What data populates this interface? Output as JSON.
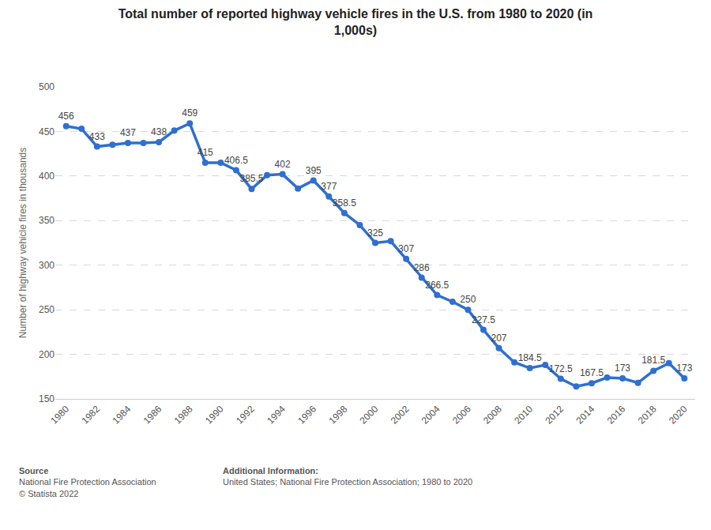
{
  "chart_data": {
    "type": "line",
    "title": "Total number of reported highway vehicle fires in the U.S. from 1980 to 2020 (in\n1,000s)",
    "y_label": "Number of highway vehicle fires in thousands",
    "x": [
      1980,
      1981,
      1982,
      1983,
      1984,
      1985,
      1986,
      1987,
      1988,
      1989,
      1990,
      1991,
      1992,
      1993,
      1994,
      1995,
      1996,
      1997,
      1998,
      1999,
      2000,
      2001,
      2002,
      2003,
      2004,
      2005,
      2006,
      2007,
      2008,
      2009,
      2010,
      2011,
      2012,
      2013,
      2014,
      2015,
      2016,
      2017,
      2018,
      2019,
      2020
    ],
    "values": [
      456,
      453,
      433,
      435,
      437,
      437,
      438,
      451,
      459,
      415,
      415,
      406.5,
      385.5,
      401,
      402,
      386,
      395,
      377,
      358.5,
      345,
      325,
      327,
      307,
      286,
      266.5,
      259,
      250,
      227.5,
      207,
      191,
      184.5,
      188,
      172.5,
      164,
      167.5,
      174,
      173,
      168,
      181.5,
      190,
      173
    ],
    "value_labels": [
      "456",
      null,
      "433",
      null,
      "437",
      null,
      "438",
      null,
      "459",
      "415",
      null,
      "406.5",
      "385.5",
      null,
      "402",
      null,
      "395",
      "377",
      "358.5",
      null,
      "325",
      null,
      "307",
      "286",
      "266.5",
      null,
      "250",
      "227.5",
      "207",
      null,
      "184.5",
      null,
      "172.5",
      null,
      "167.5",
      null,
      "173",
      null,
      "181.5",
      null,
      "173"
    ],
    "data_labels": true,
    "color": "#2f6fd0",
    "marker": "circle",
    "line_style": "solid",
    "xlim": [
      1979.3,
      2020.7
    ],
    "xticks": [
      1980,
      1982,
      1984,
      1986,
      1988,
      1990,
      1992,
      1994,
      1996,
      1998,
      2000,
      2002,
      2004,
      2006,
      2008,
      2010,
      2012,
      2014,
      2016,
      2018,
      2020
    ],
    "ylim": [
      150,
      500
    ],
    "yticks": [
      150,
      200,
      250,
      300,
      350,
      400,
      450,
      500
    ],
    "grid": true,
    "annotations": [
      [
        "Source",
        "National Fire Protection Association",
        "© Statista 2022"
      ],
      [
        "Additional Information:",
        "United States; National Fire Protection Association; 1980 to 2020"
      ]
    ]
  }
}
